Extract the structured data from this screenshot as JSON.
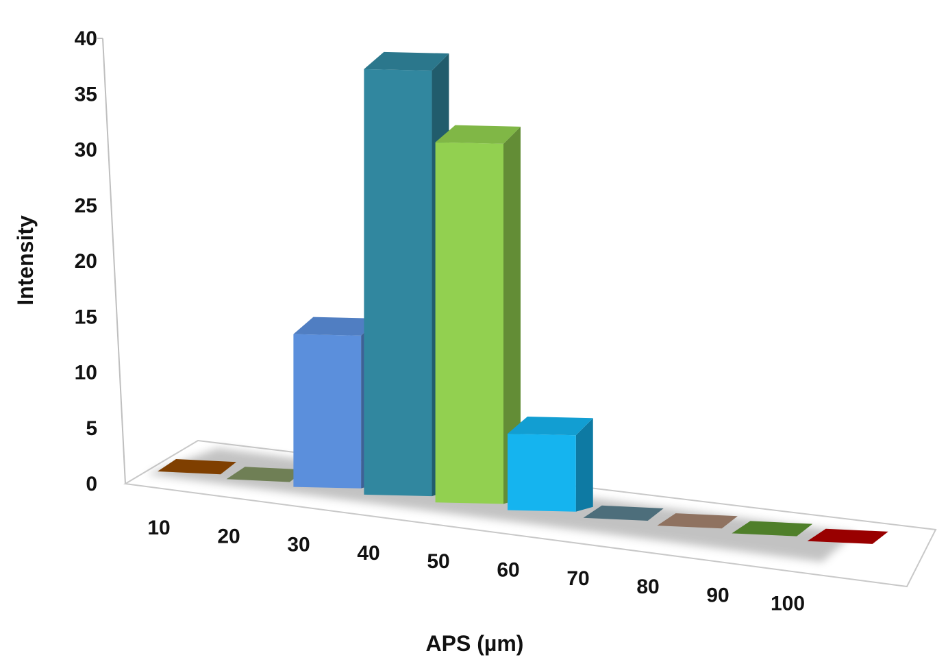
{
  "chart_data": {
    "type": "bar",
    "title": "",
    "xlabel": "APS (µm)",
    "ylabel": "Intensity",
    "ylim": [
      0,
      40
    ],
    "yticks": [
      0,
      5,
      10,
      15,
      20,
      25,
      30,
      35,
      40
    ],
    "categories": [
      "10",
      "20",
      "30",
      "40",
      "50",
      "60",
      "70",
      "80",
      "90",
      "100"
    ],
    "values": [
      0,
      0,
      14,
      39,
      33,
      7,
      0,
      0,
      0,
      0
    ],
    "colors": [
      "#7f3f00",
      "#6f7f55",
      "#5b8fdc",
      "#31879f",
      "#92d050",
      "#15b4ef",
      "#4d6e7b",
      "#8f7260",
      "#4f7f2a",
      "#990000"
    ],
    "grid": false,
    "legend": "none",
    "projection": "3d"
  }
}
